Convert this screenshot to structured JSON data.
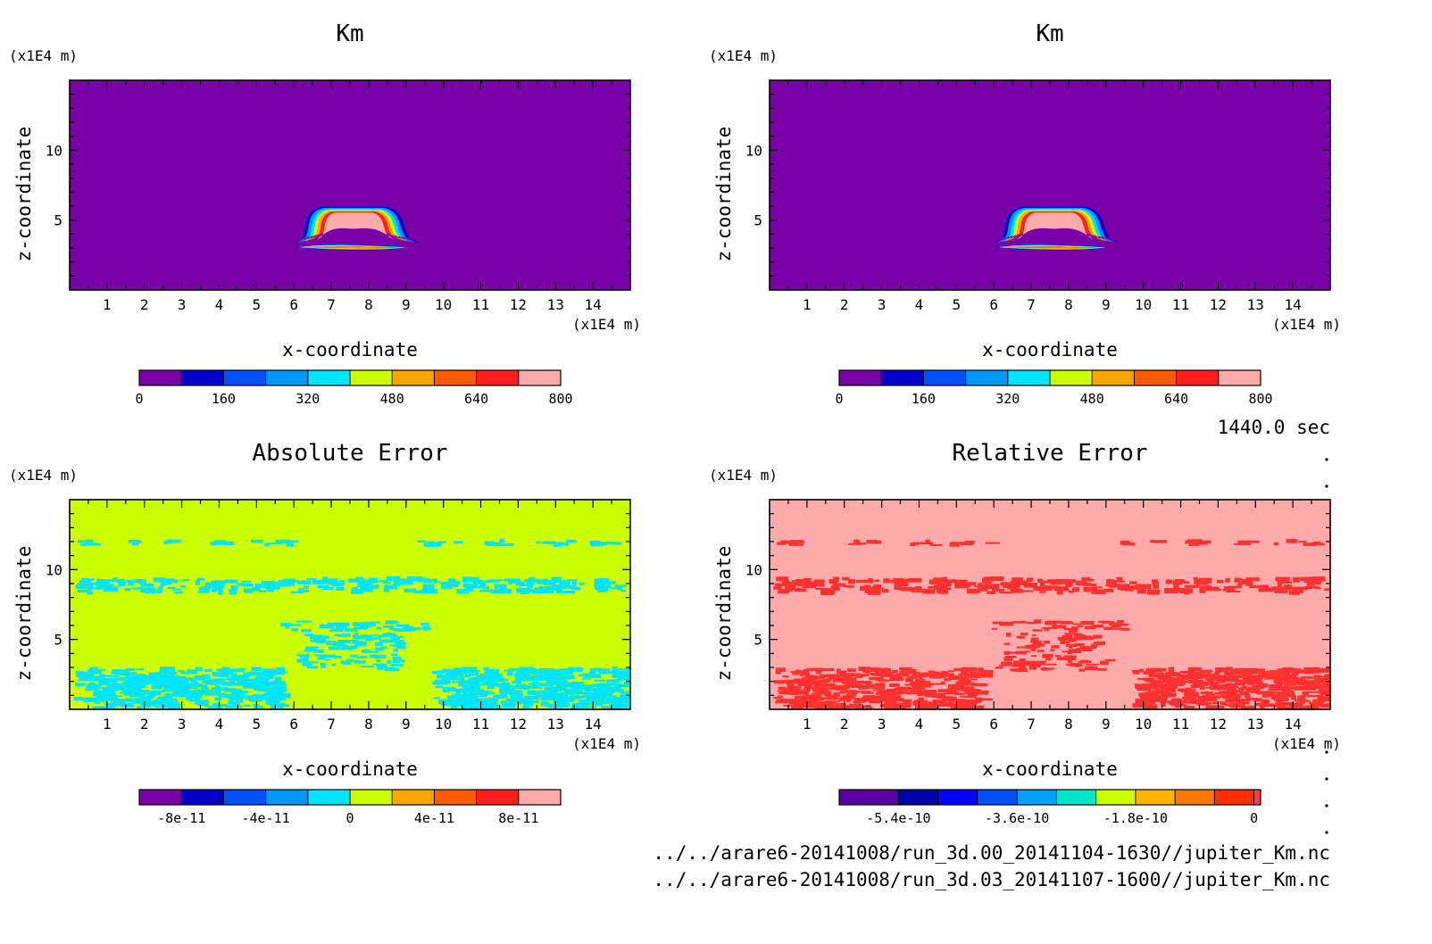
{
  "units_label": "(x1E4 m)",
  "time_label": "1440.0 sec",
  "file_paths": [
    "../../arare6-20141008/run_3d.00_20141104-1630//jupiter_Km.nc",
    "../../arare6-20141008/run_3d.03_20141107-1600//jupiter_Km.nc"
  ],
  "colors": {
    "km_background": "#7a00a8",
    "abs_background": "#ccff00",
    "abs_feature": "#00e5ff",
    "rel_background": "#ffaaaa",
    "rel_feature": "#ff3030"
  },
  "chart_data": [
    {
      "type": "heatmap",
      "title": "Km",
      "xlabel": "x-coordinate",
      "ylabel": "z-coordinate",
      "x_unit": "(x1E4 m)",
      "y_unit": "(x1E4 m)",
      "xlim": [
        0,
        15
      ],
      "ylim": [
        0,
        15
      ],
      "x_ticks": [
        1,
        2,
        3,
        4,
        5,
        6,
        7,
        8,
        9,
        10,
        11,
        12,
        13,
        14
      ],
      "y_ticks": [
        5,
        10
      ],
      "background_color": "#7a00a8",
      "colorbar": {
        "levels": [
          0,
          80,
          160,
          240,
          320,
          400,
          480,
          560,
          640,
          720,
          800
        ],
        "colors": [
          "#7a00a8",
          "#0000c8",
          "#0050ff",
          "#0096ff",
          "#00e5ff",
          "#ccff00",
          "#ffa500",
          "#ff5a00",
          "#ff1e1e",
          "#ffaaaa"
        ],
        "tick_labels": [
          "0",
          "160",
          "320",
          "480",
          "640",
          "800"
        ]
      }
    },
    {
      "type": "heatmap",
      "title": "Km",
      "xlabel": "x-coordinate",
      "ylabel": "z-coordinate",
      "x_unit": "(x1E4 m)",
      "y_unit": "(x1E4 m)",
      "xlim": [
        0,
        15
      ],
      "ylim": [
        0,
        15
      ],
      "x_ticks": [
        1,
        2,
        3,
        4,
        5,
        6,
        7,
        8,
        9,
        10,
        11,
        12,
        13,
        14
      ],
      "y_ticks": [
        5,
        10
      ],
      "background_color": "#7a00a8",
      "colorbar": {
        "levels": [
          0,
          80,
          160,
          240,
          320,
          400,
          480,
          560,
          640,
          720,
          800
        ],
        "colors": [
          "#7a00a8",
          "#0000c8",
          "#0050ff",
          "#0096ff",
          "#00e5ff",
          "#ccff00",
          "#ffa500",
          "#ff5a00",
          "#ff1e1e",
          "#ffaaaa"
        ],
        "tick_labels": [
          "0",
          "160",
          "320",
          "480",
          "640",
          "800"
        ]
      }
    },
    {
      "type": "heatmap",
      "title": "Absolute Error",
      "xlabel": "x-coordinate",
      "ylabel": "z-coordinate",
      "x_unit": "(x1E4 m)",
      "y_unit": "(x1E4 m)",
      "xlim": [
        0,
        15
      ],
      "ylim": [
        0,
        15
      ],
      "x_ticks": [
        1,
        2,
        3,
        4,
        5,
        6,
        7,
        8,
        9,
        10,
        11,
        12,
        13,
        14
      ],
      "y_ticks": [
        5,
        10
      ],
      "background_color": "#ccff00",
      "feature_color": "#00e5ff",
      "colorbar": {
        "levels": [
          -1e-10,
          -8e-11,
          -6e-11,
          -4e-11,
          -2e-11,
          0,
          2e-11,
          4e-11,
          6e-11,
          8e-11,
          1e-10
        ],
        "colors": [
          "#7a00a8",
          "#0000c8",
          "#0050ff",
          "#0096ff",
          "#00e5ff",
          "#ccff00",
          "#ffa500",
          "#ff5a00",
          "#ff1e1e",
          "#ffaaaa"
        ],
        "tick_labels": [
          "-8e-11",
          "-4e-11",
          "0",
          "4e-11",
          "8e-11"
        ],
        "tick_values": [
          -8e-11,
          -4e-11,
          0,
          4e-11,
          8e-11
        ]
      }
    },
    {
      "type": "heatmap",
      "title": "Relative Error",
      "xlabel": "x-coordinate",
      "ylabel": "z-coordinate",
      "x_unit": "(x1E4 m)",
      "y_unit": "(x1E4 m)",
      "xlim": [
        0,
        15
      ],
      "ylim": [
        0,
        15
      ],
      "x_ticks": [
        1,
        2,
        3,
        4,
        5,
        6,
        7,
        8,
        9,
        10,
        11,
        12,
        13,
        14
      ],
      "y_ticks": [
        5,
        10
      ],
      "background_color": "#ffaaaa",
      "feature_color": "#ff3030",
      "colorbar": {
        "levels": [
          -6.3e-10,
          -5.4e-10,
          -4.8e-10,
          -4.2e-10,
          -3.6e-10,
          -3e-10,
          -2.4e-10,
          -1.8e-10,
          -1.2e-10,
          -6e-11,
          0,
          1e-11
        ],
        "colors": [
          "#5a00a0",
          "#0000a8",
          "#0000ff",
          "#0050ff",
          "#00a0ff",
          "#00e5c8",
          "#ccff00",
          "#ffb400",
          "#ff7800",
          "#ff2d00",
          "#ff3c50",
          "#ffaaaa"
        ],
        "tick_labels": [
          "-5.4e-10",
          "-3.6e-10",
          "-1.8e-10",
          "0"
        ],
        "tick_values": [
          -5.4e-10,
          -3.6e-10,
          -1.8e-10,
          0
        ]
      }
    }
  ]
}
